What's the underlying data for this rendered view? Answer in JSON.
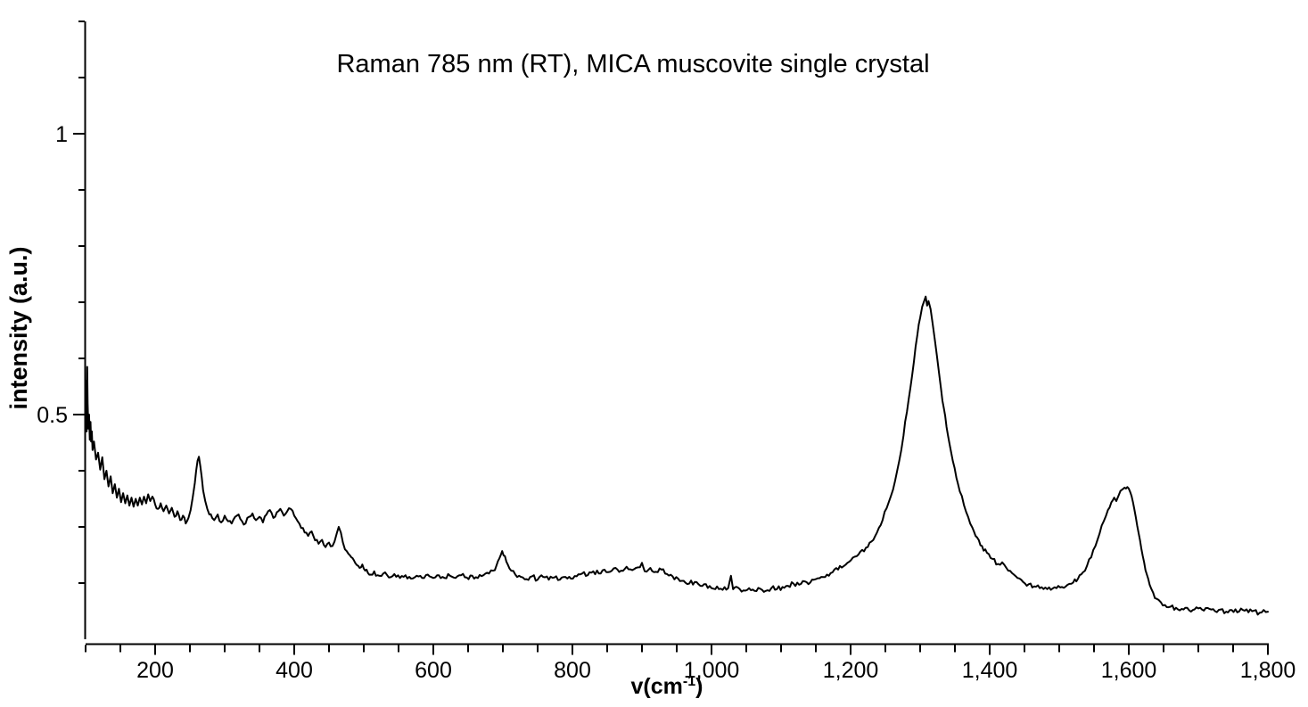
{
  "chart_data": {
    "type": "line",
    "title": "Raman 785 nm (RT), MICA muscovite single crystal",
    "xlabel": "v(cm⁻¹)",
    "ylabel": "intensity (a.u.)",
    "xlim": [
      100,
      1800
    ],
    "ylim": [
      0.1,
      1.2
    ],
    "grid": false,
    "legend": "none",
    "line_color": "#000000",
    "background": "#ffffff",
    "noise_amplitude": 0.0045,
    "x_major_ticks": [
      {
        "v": 200,
        "label": "200"
      },
      {
        "v": 400,
        "label": "400"
      },
      {
        "v": 600,
        "label": "600"
      },
      {
        "v": 800,
        "label": "800"
      },
      {
        "v": 1000,
        "label": "1,000"
      },
      {
        "v": 1200,
        "label": "1,200"
      },
      {
        "v": 1400,
        "label": "1,400"
      },
      {
        "v": 1600,
        "label": "1,600"
      },
      {
        "v": 1800,
        "label": "1,800"
      }
    ],
    "x_minor_step": 50,
    "y_major_ticks": [
      {
        "v": 0.5,
        "label": "0.5"
      },
      {
        "v": 1,
        "label": "1"
      }
    ],
    "y_minor_step": 0.1,
    "series": [
      {
        "name": "MICA muscovite single crystal",
        "points": [
          [
            100,
            0.51
          ],
          [
            100.8,
            0.56
          ],
          [
            101.5,
            0.47
          ],
          [
            102.3,
            0.585
          ],
          [
            103,
            0.52
          ],
          [
            104,
            0.475
          ],
          [
            105,
            0.5
          ],
          [
            106,
            0.455
          ],
          [
            107,
            0.487
          ],
          [
            108,
            0.452
          ],
          [
            109,
            0.47
          ],
          [
            110,
            0.437
          ],
          [
            112,
            0.452
          ],
          [
            115,
            0.42
          ],
          [
            118,
            0.432
          ],
          [
            121,
            0.402
          ],
          [
            124,
            0.424
          ],
          [
            127,
            0.385
          ],
          [
            130,
            0.4
          ],
          [
            133,
            0.372
          ],
          [
            136,
            0.39
          ],
          [
            139,
            0.36
          ],
          [
            142,
            0.376
          ],
          [
            145,
            0.352
          ],
          [
            148,
            0.368
          ],
          [
            151,
            0.344
          ],
          [
            154,
            0.36
          ],
          [
            157,
            0.342
          ],
          [
            160,
            0.356
          ],
          [
            163,
            0.338
          ],
          [
            166,
            0.352
          ],
          [
            169,
            0.336
          ],
          [
            172,
            0.35
          ],
          [
            175,
            0.338
          ],
          [
            178,
            0.352
          ],
          [
            181,
            0.34
          ],
          [
            184,
            0.354
          ],
          [
            187,
            0.342
          ],
          [
            190,
            0.358
          ],
          [
            193,
            0.346
          ],
          [
            196,
            0.354
          ],
          [
            200,
            0.34
          ],
          [
            204,
            0.332
          ],
          [
            208,
            0.342
          ],
          [
            212,
            0.328
          ],
          [
            216,
            0.338
          ],
          [
            220,
            0.324
          ],
          [
            224,
            0.334
          ],
          [
            228,
            0.318
          ],
          [
            232,
            0.328
          ],
          [
            236,
            0.312
          ],
          [
            240,
            0.32
          ],
          [
            244,
            0.306
          ],
          [
            248,
            0.316
          ],
          [
            251,
            0.33
          ],
          [
            254,
            0.352
          ],
          [
            257,
            0.378
          ],
          [
            259,
            0.4
          ],
          [
            261,
            0.418
          ],
          [
            263,
            0.425
          ],
          [
            265,
            0.408
          ],
          [
            267,
            0.388
          ],
          [
            269,
            0.365
          ],
          [
            272,
            0.346
          ],
          [
            275,
            0.332
          ],
          [
            278,
            0.322
          ],
          [
            282,
            0.316
          ],
          [
            285,
            0.312
          ],
          [
            290,
            0.322
          ],
          [
            295,
            0.308
          ],
          [
            300,
            0.32
          ],
          [
            305,
            0.31
          ],
          [
            310,
            0.306
          ],
          [
            315,
            0.318
          ],
          [
            320,
            0.322
          ],
          [
            325,
            0.31
          ],
          [
            330,
            0.306
          ],
          [
            335,
            0.318
          ],
          [
            340,
            0.324
          ],
          [
            345,
            0.312
          ],
          [
            350,
            0.318
          ],
          [
            355,
            0.308
          ],
          [
            360,
            0.322
          ],
          [
            365,
            0.33
          ],
          [
            370,
            0.316
          ],
          [
            375,
            0.326
          ],
          [
            380,
            0.332
          ],
          [
            385,
            0.32
          ],
          [
            390,
            0.328
          ],
          [
            395,
            0.332
          ],
          [
            400,
            0.32
          ],
          [
            405,
            0.31
          ],
          [
            410,
            0.298
          ],
          [
            415,
            0.29
          ],
          [
            420,
            0.284
          ],
          [
            425,
            0.292
          ],
          [
            430,
            0.276
          ],
          [
            435,
            0.27
          ],
          [
            440,
            0.277
          ],
          [
            445,
            0.264
          ],
          [
            450,
            0.272
          ],
          [
            455,
            0.266
          ],
          [
            458,
            0.274
          ],
          [
            461,
            0.288
          ],
          [
            464,
            0.3
          ],
          [
            467,
            0.29
          ],
          [
            470,
            0.272
          ],
          [
            473,
            0.26
          ],
          [
            478,
            0.252
          ],
          [
            482,
            0.246
          ],
          [
            486,
            0.24
          ],
          [
            490,
            0.232
          ],
          [
            494,
            0.227
          ],
          [
            498,
            0.233
          ],
          [
            502,
            0.222
          ],
          [
            506,
            0.218
          ],
          [
            510,
            0.215
          ],
          [
            515,
            0.221
          ],
          [
            520,
            0.214
          ],
          [
            528,
            0.217
          ],
          [
            536,
            0.21
          ],
          [
            544,
            0.216
          ],
          [
            552,
            0.209
          ],
          [
            560,
            0.214
          ],
          [
            568,
            0.208
          ],
          [
            576,
            0.213
          ],
          [
            584,
            0.209
          ],
          [
            592,
            0.215
          ],
          [
            600,
            0.209
          ],
          [
            608,
            0.214
          ],
          [
            616,
            0.209
          ],
          [
            624,
            0.213
          ],
          [
            632,
            0.209
          ],
          [
            640,
            0.214
          ],
          [
            648,
            0.21
          ],
          [
            656,
            0.213
          ],
          [
            664,
            0.209
          ],
          [
            672,
            0.214
          ],
          [
            680,
            0.217
          ],
          [
            686,
            0.222
          ],
          [
            691,
            0.232
          ],
          [
            695,
            0.244
          ],
          [
            699,
            0.257
          ],
          [
            703,
            0.248
          ],
          [
            707,
            0.233
          ],
          [
            712,
            0.222
          ],
          [
            718,
            0.215
          ],
          [
            726,
            0.211
          ],
          [
            734,
            0.207
          ],
          [
            742,
            0.212
          ],
          [
            750,
            0.206
          ],
          [
            758,
            0.211
          ],
          [
            766,
            0.206
          ],
          [
            774,
            0.21
          ],
          [
            782,
            0.206
          ],
          [
            790,
            0.211
          ],
          [
            798,
            0.208
          ],
          [
            806,
            0.212
          ],
          [
            814,
            0.217
          ],
          [
            822,
            0.214
          ],
          [
            830,
            0.221
          ],
          [
            838,
            0.217
          ],
          [
            846,
            0.224
          ],
          [
            854,
            0.22
          ],
          [
            862,
            0.227
          ],
          [
            870,
            0.222
          ],
          [
            878,
            0.229
          ],
          [
            886,
            0.223
          ],
          [
            894,
            0.228
          ],
          [
            900,
            0.236
          ],
          [
            904,
            0.221
          ],
          [
            912,
            0.227
          ],
          [
            920,
            0.22
          ],
          [
            928,
            0.224
          ],
          [
            936,
            0.216
          ],
          [
            944,
            0.212
          ],
          [
            952,
            0.208
          ],
          [
            960,
            0.204
          ],
          [
            968,
            0.199
          ],
          [
            976,
            0.202
          ],
          [
            984,
            0.195
          ],
          [
            992,
            0.198
          ],
          [
            1000,
            0.191
          ],
          [
            1008,
            0.194
          ],
          [
            1016,
            0.188
          ],
          [
            1024,
            0.191
          ],
          [
            1028,
            0.213
          ],
          [
            1031,
            0.189
          ],
          [
            1038,
            0.192
          ],
          [
            1046,
            0.187
          ],
          [
            1054,
            0.191
          ],
          [
            1062,
            0.186
          ],
          [
            1070,
            0.19
          ],
          [
            1078,
            0.186
          ],
          [
            1086,
            0.191
          ],
          [
            1094,
            0.189
          ],
          [
            1102,
            0.193
          ],
          [
            1110,
            0.195
          ],
          [
            1118,
            0.199
          ],
          [
            1126,
            0.197
          ],
          [
            1134,
            0.203
          ],
          [
            1142,
            0.201
          ],
          [
            1150,
            0.207
          ],
          [
            1158,
            0.211
          ],
          [
            1166,
            0.215
          ],
          [
            1174,
            0.219
          ],
          [
            1182,
            0.224
          ],
          [
            1190,
            0.23
          ],
          [
            1198,
            0.238
          ],
          [
            1206,
            0.247
          ],
          [
            1214,
            0.256
          ],
          [
            1222,
            0.263
          ],
          [
            1230,
            0.274
          ],
          [
            1238,
            0.29
          ],
          [
            1246,
            0.312
          ],
          [
            1252,
            0.334
          ],
          [
            1258,
            0.355
          ],
          [
            1264,
            0.382
          ],
          [
            1270,
            0.418
          ],
          [
            1276,
            0.462
          ],
          [
            1281,
            0.505
          ],
          [
            1286,
            0.548
          ],
          [
            1291,
            0.594
          ],
          [
            1296,
            0.642
          ],
          [
            1300,
            0.672
          ],
          [
            1303,
            0.692
          ],
          [
            1306,
            0.703
          ],
          [
            1308,
            0.71
          ],
          [
            1310,
            0.694
          ],
          [
            1312,
            0.702
          ],
          [
            1315,
            0.688
          ],
          [
            1318,
            0.662
          ],
          [
            1321,
            0.634
          ],
          [
            1324,
            0.606
          ],
          [
            1327,
            0.575
          ],
          [
            1330,
            0.546
          ],
          [
            1334,
            0.512
          ],
          [
            1338,
            0.478
          ],
          [
            1342,
            0.449
          ],
          [
            1347,
            0.417
          ],
          [
            1352,
            0.388
          ],
          [
            1357,
            0.363
          ],
          [
            1363,
            0.339
          ],
          [
            1369,
            0.318
          ],
          [
            1375,
            0.299
          ],
          [
            1382,
            0.281
          ],
          [
            1389,
            0.266
          ],
          [
            1396,
            0.254
          ],
          [
            1404,
            0.243
          ],
          [
            1412,
            0.234
          ],
          [
            1418,
            0.237
          ],
          [
            1424,
            0.227
          ],
          [
            1432,
            0.218
          ],
          [
            1440,
            0.209
          ],
          [
            1448,
            0.202
          ],
          [
            1456,
            0.198
          ],
          [
            1464,
            0.194
          ],
          [
            1472,
            0.191
          ],
          [
            1480,
            0.192
          ],
          [
            1488,
            0.188
          ],
          [
            1496,
            0.191
          ],
          [
            1504,
            0.193
          ],
          [
            1512,
            0.197
          ],
          [
            1520,
            0.201
          ],
          [
            1527,
            0.208
          ],
          [
            1534,
            0.219
          ],
          [
            1540,
            0.231
          ],
          [
            1546,
            0.246
          ],
          [
            1552,
            0.266
          ],
          [
            1558,
            0.288
          ],
          [
            1564,
            0.31
          ],
          [
            1570,
            0.33
          ],
          [
            1575,
            0.344
          ],
          [
            1579,
            0.352
          ],
          [
            1582,
            0.346
          ],
          [
            1586,
            0.358
          ],
          [
            1590,
            0.366
          ],
          [
            1594,
            0.37
          ],
          [
            1598,
            0.371
          ],
          [
            1602,
            0.362
          ],
          [
            1606,
            0.344
          ],
          [
            1610,
            0.318
          ],
          [
            1614,
            0.29
          ],
          [
            1618,
            0.262
          ],
          [
            1622,
            0.237
          ],
          [
            1626,
            0.215
          ],
          [
            1630,
            0.197
          ],
          [
            1635,
            0.183
          ],
          [
            1640,
            0.172
          ],
          [
            1646,
            0.166
          ],
          [
            1652,
            0.161
          ],
          [
            1660,
            0.158
          ],
          [
            1668,
            0.156
          ],
          [
            1676,
            0.154
          ],
          [
            1684,
            0.156
          ],
          [
            1692,
            0.152
          ],
          [
            1700,
            0.155
          ],
          [
            1708,
            0.151
          ],
          [
            1716,
            0.154
          ],
          [
            1724,
            0.15
          ],
          [
            1732,
            0.153
          ],
          [
            1740,
            0.149
          ],
          [
            1748,
            0.152
          ],
          [
            1756,
            0.148
          ],
          [
            1764,
            0.152
          ],
          [
            1772,
            0.148
          ],
          [
            1780,
            0.151
          ],
          [
            1788,
            0.147
          ],
          [
            1794,
            0.152
          ],
          [
            1800,
            0.149
          ]
        ]
      }
    ]
  }
}
